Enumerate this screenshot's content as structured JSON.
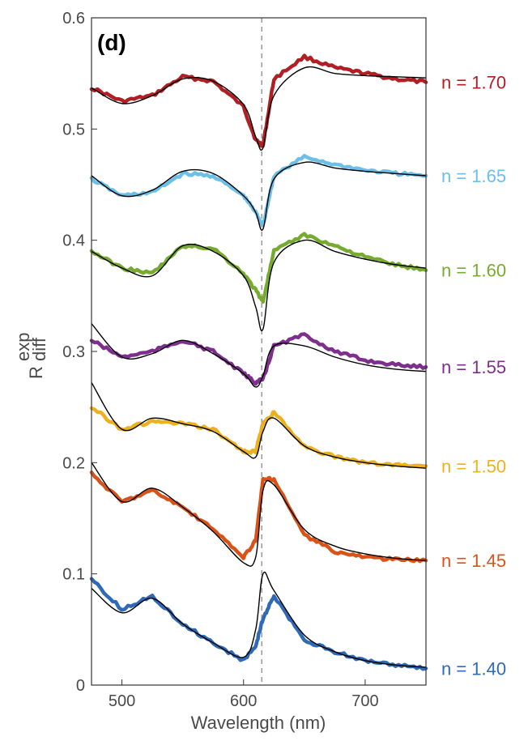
{
  "chart_data": {
    "type": "line",
    "panel_label": "(d)",
    "xlabel": "Wavelength (nm)",
    "ylabel": {
      "base": "R",
      "superscript": "exp",
      "subscript": "diff"
    },
    "xlim": [
      475,
      750
    ],
    "ylim": [
      0,
      0.6
    ],
    "xticks": [
      500,
      600,
      700
    ],
    "yticks": [
      0,
      0.1,
      0.2,
      0.3,
      0.4,
      0.5,
      0.6
    ],
    "ytick_labels": [
      "0",
      "0.1",
      "0.2",
      "0.3",
      "0.4",
      "0.5",
      "0.6"
    ],
    "reference_line": {
      "x": 615,
      "style": "dashed",
      "color": "#999999"
    },
    "fit_color": "#000000",
    "x": [
      475,
      500,
      525,
      550,
      575,
      600,
      610,
      616,
      625,
      650,
      675,
      700,
      725,
      750
    ],
    "series": [
      {
        "name": "n = 1.70",
        "color": "#b11f24",
        "exp": [
          0.537,
          0.525,
          0.53,
          0.547,
          0.543,
          0.52,
          0.49,
          0.485,
          0.545,
          0.565,
          0.555,
          0.55,
          0.545,
          0.542
        ],
        "fit": [
          0.537,
          0.523,
          0.53,
          0.545,
          0.543,
          0.522,
          0.493,
          0.483,
          0.53,
          0.555,
          0.55,
          0.548,
          0.547,
          0.546
        ]
      },
      {
        "name": "n = 1.65",
        "color": "#6bbfe8",
        "exp": [
          0.455,
          0.44,
          0.443,
          0.46,
          0.458,
          0.44,
          0.425,
          0.413,
          0.458,
          0.475,
          0.468,
          0.463,
          0.46,
          0.458
        ],
        "fit": [
          0.458,
          0.44,
          0.445,
          0.462,
          0.46,
          0.44,
          0.425,
          0.41,
          0.455,
          0.47,
          0.465,
          0.462,
          0.46,
          0.458
        ]
      },
      {
        "name": "n = 1.60",
        "color": "#76ab2f",
        "exp": [
          0.39,
          0.375,
          0.37,
          0.395,
          0.393,
          0.37,
          0.355,
          0.345,
          0.39,
          0.405,
          0.395,
          0.385,
          0.378,
          0.373
        ],
        "fit": [
          0.39,
          0.375,
          0.368,
          0.395,
          0.39,
          0.368,
          0.34,
          0.32,
          0.38,
          0.4,
          0.39,
          0.383,
          0.378,
          0.375
        ]
      },
      {
        "name": "n = 1.55",
        "color": "#7e2f8e",
        "exp": [
          0.31,
          0.295,
          0.3,
          0.31,
          0.3,
          0.28,
          0.272,
          0.275,
          0.305,
          0.315,
          0.3,
          0.292,
          0.288,
          0.286
        ],
        "fit": [
          0.325,
          0.295,
          0.298,
          0.31,
          0.298,
          0.28,
          0.268,
          0.278,
          0.305,
          0.305,
          0.295,
          0.288,
          0.284,
          0.282
        ]
      },
      {
        "name": "n = 1.50",
        "color": "#edb120",
        "exp": [
          0.25,
          0.23,
          0.237,
          0.235,
          0.23,
          0.21,
          0.21,
          0.235,
          0.245,
          0.215,
          0.205,
          0.2,
          0.198,
          0.197
        ],
        "fit": [
          0.272,
          0.23,
          0.24,
          0.235,
          0.228,
          0.21,
          0.205,
          0.228,
          0.24,
          0.215,
          0.205,
          0.2,
          0.197,
          0.195
        ]
      },
      {
        "name": "n = 1.45",
        "color": "#d95319",
        "exp": [
          0.19,
          0.165,
          0.175,
          0.16,
          0.14,
          0.115,
          0.13,
          0.185,
          0.185,
          0.135,
          0.12,
          0.115,
          0.113,
          0.112
        ],
        "fit": [
          0.2,
          0.165,
          0.177,
          0.16,
          0.138,
          0.11,
          0.115,
          0.175,
          0.18,
          0.14,
          0.125,
          0.118,
          0.114,
          0.112
        ]
      },
      {
        "name": "n = 1.40",
        "color": "#2f6ab7",
        "exp": [
          0.095,
          0.068,
          0.08,
          0.055,
          0.038,
          0.022,
          0.035,
          0.06,
          0.08,
          0.04,
          0.03,
          0.022,
          0.018,
          0.015
        ],
        "fit": [
          0.087,
          0.065,
          0.078,
          0.055,
          0.038,
          0.025,
          0.05,
          0.1,
          0.085,
          0.045,
          0.03,
          0.022,
          0.018,
          0.016
        ]
      }
    ]
  }
}
